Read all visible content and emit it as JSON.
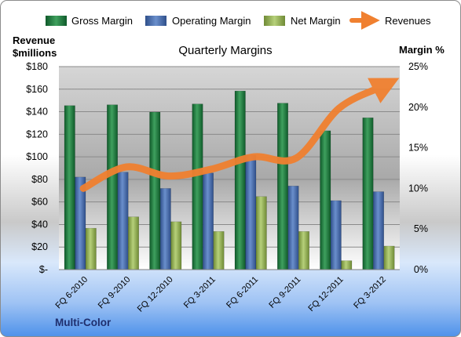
{
  "chart_data": {
    "type": "bar",
    "title": "Quarterly Margins",
    "categories": [
      "FQ 6-2010",
      "FQ 9-2010",
      "FQ 12-2010",
      "FQ 3-2011",
      "FQ 6-2011",
      "FQ 9-2011",
      "FQ 12-2011",
      "FQ 3-2012"
    ],
    "series": [
      {
        "name": "Gross Margin",
        "axis": "right",
        "unit": "%",
        "color": "#1f7a3f",
        "values": [
          20.2,
          20.3,
          19.4,
          20.4,
          22.0,
          20.5,
          17.1,
          18.7
        ]
      },
      {
        "name": "Operating Margin",
        "axis": "right",
        "unit": "%",
        "color": "#4a6fb0",
        "values": [
          11.4,
          12.0,
          10.0,
          11.9,
          14.1,
          10.3,
          8.5,
          9.6
        ]
      },
      {
        "name": "Net Margin",
        "axis": "right",
        "unit": "%",
        "color": "#9bbb59",
        "values": [
          5.1,
          6.5,
          5.9,
          4.7,
          9.0,
          4.7,
          1.1,
          2.9
        ]
      },
      {
        "name": "Revenues",
        "type": "line",
        "axis": "left",
        "unit": "$millions",
        "color": "#f08030",
        "values": [
          72,
          91,
          83,
          89,
          100,
          99,
          143,
          162
        ]
      }
    ],
    "left_axis": {
      "label_line1": "Revenue",
      "label_line2": "$millions",
      "range": [
        0,
        180
      ],
      "ticks": [
        0,
        20,
        40,
        60,
        80,
        100,
        120,
        140,
        160,
        180
      ],
      "tick_labels": [
        "$-",
        "$20",
        "$40",
        "$60",
        "$80",
        "$100",
        "$120",
        "$140",
        "$160",
        "$180"
      ]
    },
    "right_axis": {
      "label": "Margin %",
      "range": [
        0,
        25
      ],
      "ticks": [
        0,
        5,
        10,
        15,
        20,
        25
      ],
      "tick_labels": [
        "0%",
        "5%",
        "10%",
        "15%",
        "20%",
        "25%"
      ]
    },
    "grid": true,
    "legend_position": "top"
  },
  "footer_text": "Multi-Color"
}
